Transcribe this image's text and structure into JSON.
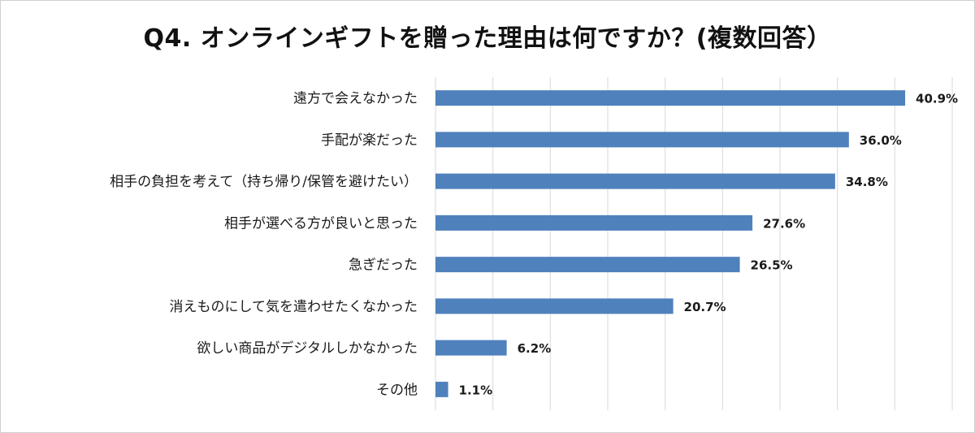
{
  "chart_data": {
    "type": "bar",
    "orientation": "horizontal",
    "title": "Q4. オンラインギフトを贈った理由は何ですか？(複数回答）",
    "categories": [
      "遠方で会えなかった",
      "手配が楽だった",
      "相手の負担を考えて（持ち帰り/保管を避けたい）",
      "相手が選べる方が良いと思った",
      "急ぎだった",
      "消えものにして気を遣わせたくなかった",
      "欲しい商品がデジタルしかなかった",
      "その他"
    ],
    "values": [
      40.9,
      36.0,
      34.8,
      27.6,
      26.5,
      20.7,
      6.2,
      1.1
    ],
    "value_labels": [
      "40.9%",
      "36.0%",
      "34.8%",
      "27.6%",
      "26.5%",
      "20.7%",
      "6.2%",
      "1.1%"
    ],
    "xlim": [
      0,
      45
    ],
    "grid": "vertical",
    "bar_color": "#4f81bd"
  }
}
